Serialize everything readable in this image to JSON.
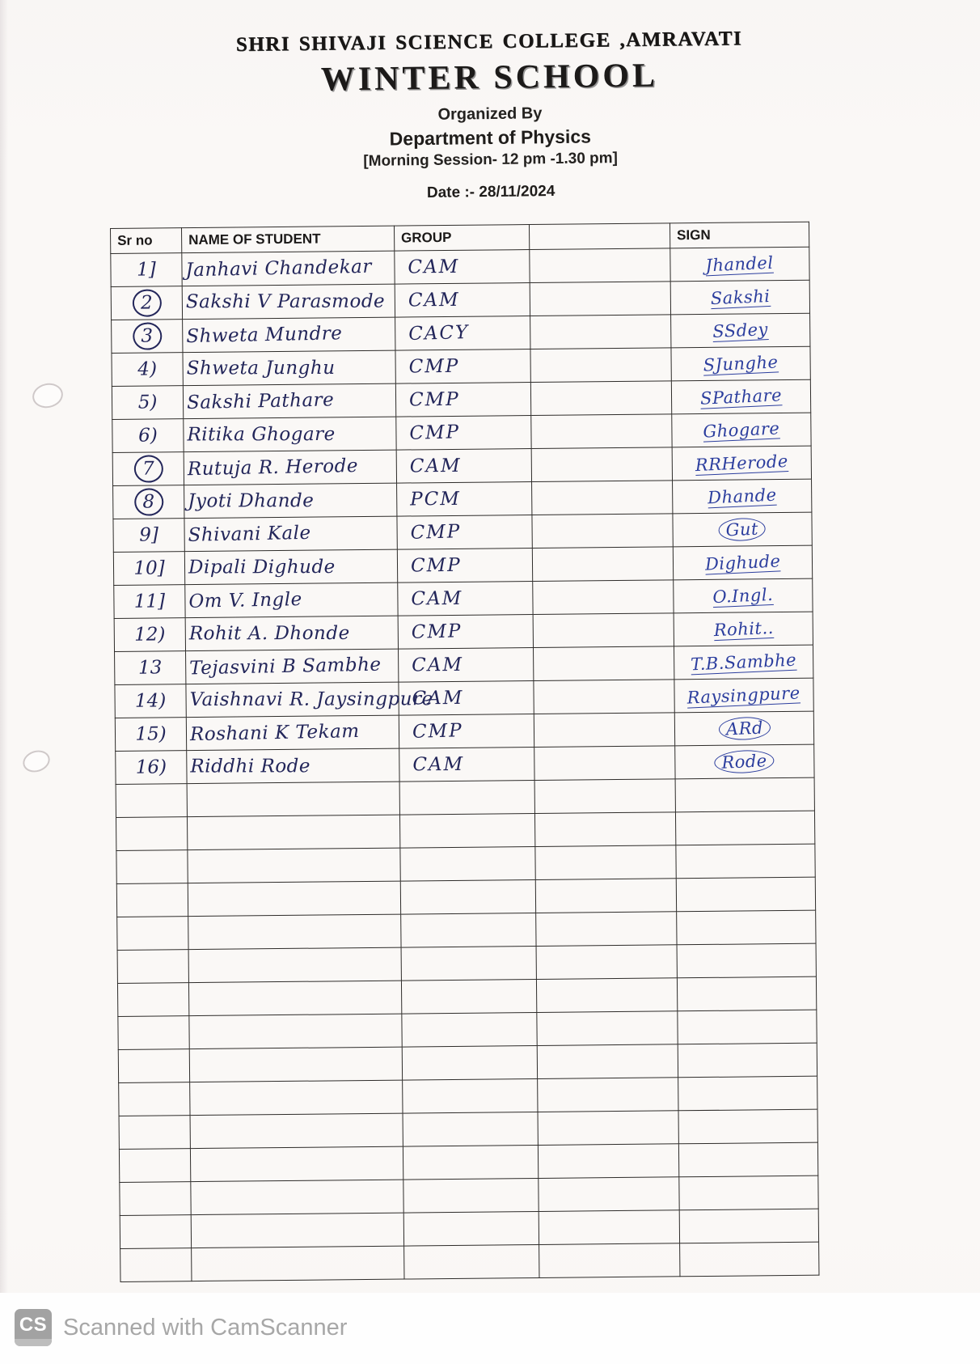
{
  "header": {
    "college": "SHRI SHIVAJI SCIENCE COLLEGE ,AMRAVATI",
    "event": "WINTER SCHOOL",
    "organized_by": "Organized By",
    "department": "Department of Physics",
    "session": "[Morning Session- 12 pm -1.30 pm]",
    "date": "Date :- 28/11/2024"
  },
  "table": {
    "columns": [
      "Sr no",
      "NAME OF STUDENT",
      "GROUP",
      "",
      "SIGN"
    ],
    "rows": [
      {
        "sr": "1]",
        "circled": false,
        "name": "Janhavi Chandekar",
        "group": "CAM",
        "sign": "Jhandel",
        "sign_circled": false
      },
      {
        "sr": "2",
        "circled": true,
        "name": "Sakshi V Parasmode",
        "group": "CAM",
        "sign": "Sakshi",
        "sign_circled": false
      },
      {
        "sr": "3",
        "circled": true,
        "name": "Shweta Mundre",
        "group": "CACY",
        "sign": "SSdey",
        "sign_circled": false
      },
      {
        "sr": "4)",
        "circled": false,
        "name": "Shweta Junghu",
        "group": "CMP",
        "sign": "SJunghe",
        "sign_circled": false
      },
      {
        "sr": "5)",
        "circled": false,
        "name": "Sakshi Pathare",
        "group": "CMP",
        "sign": "SPathare",
        "sign_circled": false
      },
      {
        "sr": "6)",
        "circled": false,
        "name": "Ritika Ghogare",
        "group": "CMP",
        "sign": "Ghogare",
        "sign_circled": false
      },
      {
        "sr": "7",
        "circled": true,
        "name": "Rutuja R. Herode",
        "group": "CAM",
        "sign": "RRHerode",
        "sign_circled": false
      },
      {
        "sr": "8",
        "circled": true,
        "name": "Jyoti Dhande",
        "group": "PCM",
        "sign": "Dhande",
        "sign_circled": false
      },
      {
        "sr": "9]",
        "circled": false,
        "name": "Shivani Kale",
        "group": "CMP",
        "sign": "Gut",
        "sign_circled": true
      },
      {
        "sr": "10]",
        "circled": false,
        "name": "Dipali Dighude",
        "group": "CMP",
        "sign": "Dighude",
        "sign_circled": false
      },
      {
        "sr": "11]",
        "circled": false,
        "name": "Om V. Ingle",
        "group": "CAM",
        "sign": "O.Ingl.",
        "sign_circled": false
      },
      {
        "sr": "12)",
        "circled": false,
        "name": "Rohit A. Dhonde",
        "group": "CMP",
        "sign": "Rohit..",
        "sign_circled": false
      },
      {
        "sr": "13",
        "circled": false,
        "name": "Tejasvini B Sambhe",
        "group": "CAM",
        "sign": "T.B.Sambhe",
        "sign_circled": false
      },
      {
        "sr": "14)",
        "circled": false,
        "name": "Vaishnavi R. Jaysingpure",
        "group": "CAM",
        "sign": "Raysingpure",
        "sign_circled": false
      },
      {
        "sr": "15)",
        "circled": false,
        "name": "Roshani K Tekam",
        "group": "CMP",
        "sign": "ARd",
        "sign_circled": true
      },
      {
        "sr": "16)",
        "circled": false,
        "name": "Riddhi Rode",
        "group": "CAM",
        "sign": "Rode",
        "sign_circled": true
      }
    ],
    "empty_row_count": 15
  },
  "watermark": {
    "logo": "CS",
    "text": "Scanned with CamScanner"
  },
  "colors": {
    "ink": "#23265a",
    "sign_ink": "#2c3e9e",
    "watermark_gray": "#a7a7a7"
  }
}
